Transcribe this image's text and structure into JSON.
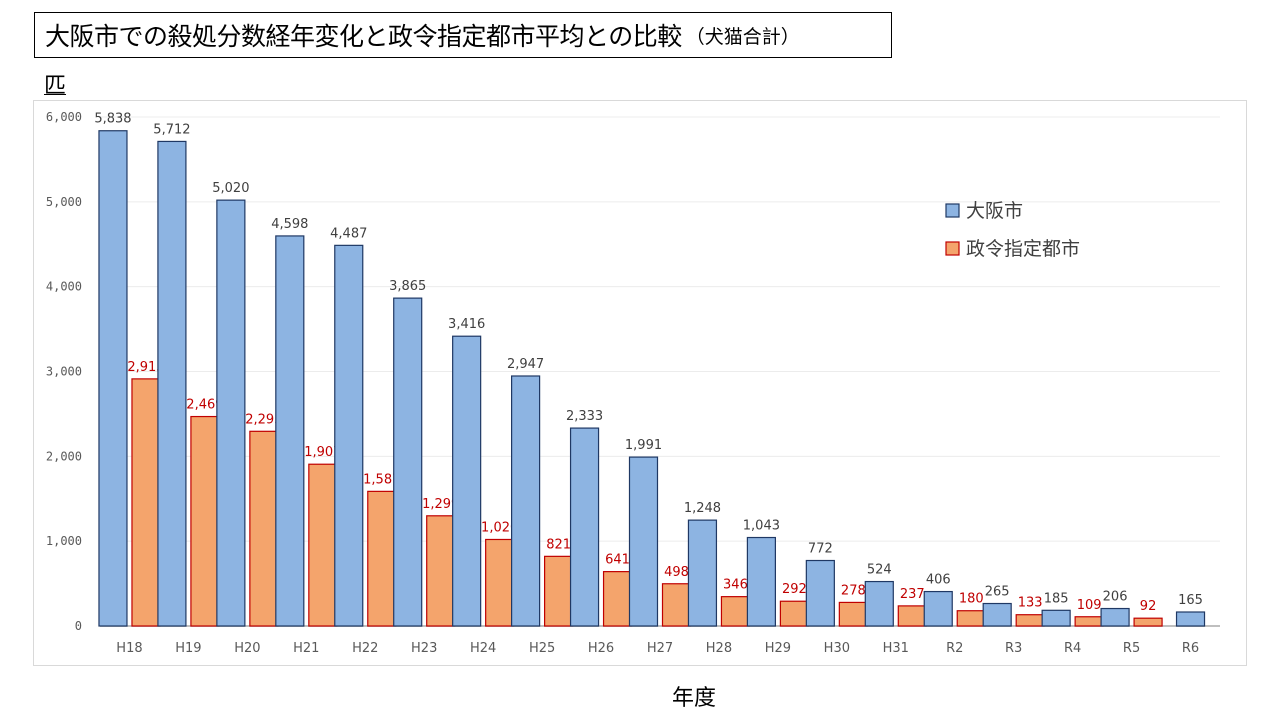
{
  "header": {
    "title": "大阪市での殺処分数経年変化と政令指定都市平均との比較",
    "subtitle": "（犬猫合計）",
    "unit_label": "匹",
    "x_axis_title": "年度"
  },
  "chart_data": {
    "type": "bar",
    "title": "大阪市での殺処分数経年変化と政令指定都市平均との比較（犬猫合計）",
    "xlabel": "年度",
    "ylabel": "匹",
    "ylim": [
      0,
      6000
    ],
    "yticks": [
      0,
      1000,
      2000,
      3000,
      4000,
      5000,
      6000
    ],
    "ytick_labels": [
      "0",
      "1,000",
      "2,000",
      "3,000",
      "4,000",
      "5,000",
      "6,000"
    ],
    "grid": true,
    "legend_position": "top-right",
    "categories": [
      "H18",
      "H19",
      "H20",
      "H21",
      "H22",
      "H23",
      "H24",
      "H25",
      "H26",
      "H27",
      "H28",
      "H29",
      "H30",
      "H31",
      "R2",
      "R3",
      "R4",
      "R5",
      "R6"
    ],
    "series": [
      {
        "name": "大阪市",
        "color": "#8db4e2",
        "border": "#1f3864",
        "label_color": "#404040",
        "values": [
          5838,
          5712,
          5020,
          4598,
          4487,
          3865,
          3416,
          2947,
          2333,
          1991,
          1248,
          1043,
          772,
          524,
          406,
          265,
          185,
          206,
          165
        ]
      },
      {
        "name": "政令指定都市",
        "color": "#f4a46c",
        "border": "#c00000",
        "label_color": "#c00000",
        "values": [
          2913,
          2469,
          2295,
          1907,
          1587,
          1299,
          1020,
          821,
          641,
          498,
          346,
          292,
          278,
          237,
          180,
          133,
          109,
          92,
          null
        ]
      }
    ]
  }
}
